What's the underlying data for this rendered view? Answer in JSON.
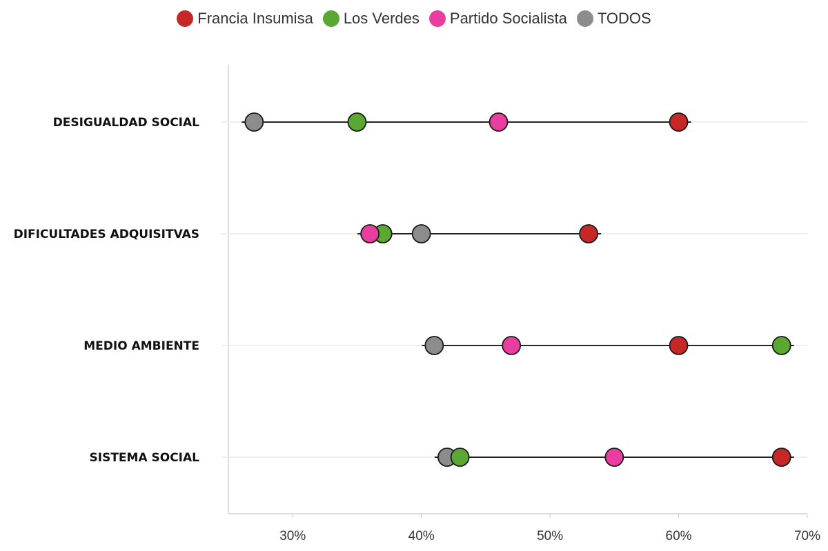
{
  "chart_data": {
    "type": "dot-range",
    "categories": [
      "DESIGUALDAD SOCIAL",
      "DIFICULTADES ADQUISITVAS",
      "MEDIO AMBIENTE",
      "SISTEMA SOCIAL"
    ],
    "series": [
      {
        "name": "Francia Insumisa",
        "color": "#c62828",
        "values": [
          60,
          53,
          60,
          68
        ]
      },
      {
        "name": "Los Verdes",
        "color": "#5aa832",
        "values": [
          35,
          37,
          68,
          43
        ]
      },
      {
        "name": "Partido Socialista",
        "color": "#e93ea0",
        "values": [
          46,
          36,
          47,
          55
        ]
      },
      {
        "name": "TODOS",
        "color": "#8c8c8c",
        "values": [
          27,
          40,
          41,
          42
        ]
      }
    ],
    "x_ticks": [
      "30%",
      "40%",
      "50%",
      "60%",
      "70%"
    ],
    "x_tick_values": [
      30,
      40,
      50,
      60,
      70
    ],
    "xlim": [
      25,
      70
    ],
    "unit": "%",
    "legend_position": "top-center",
    "grid": "horizontal"
  }
}
